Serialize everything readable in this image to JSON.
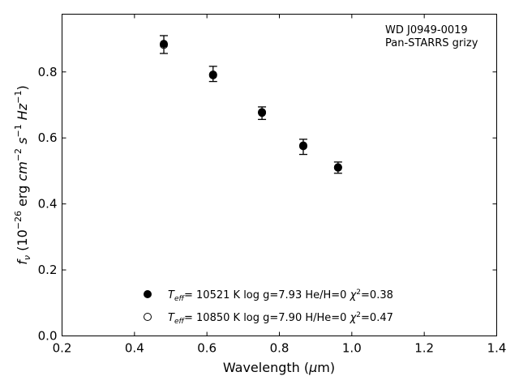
{
  "chart_data": {
    "type": "scatter",
    "xlabel": "Wavelength (μm)",
    "ylabel": "fν (10⁻²⁶ erg cm⁻² s⁻¹ Hz⁻¹)",
    "xlim": [
      0.2,
      1.4
    ],
    "ylim": [
      0.0,
      0.975
    ],
    "x_ticks": [
      0.2,
      0.4,
      0.6,
      0.8,
      1.0,
      1.2,
      1.4
    ],
    "x_tick_labels": [
      "0.2",
      "0.4",
      "0.6",
      "0.8",
      "1.0",
      "1.2",
      "1.4"
    ],
    "y_ticks": [
      0.0,
      0.2,
      0.4,
      0.6,
      0.8
    ],
    "y_tick_labels": [
      "0.0",
      "0.2",
      "0.4",
      "0.6",
      "0.8"
    ],
    "grid": false,
    "annotation_lines": [
      "WD J0949-0019",
      "Pan-STARRS grizy"
    ],
    "annotation_placement": "top-right",
    "legend_placement": "bottom-center",
    "observed": {
      "x": [
        0.481,
        0.617,
        0.752,
        0.866,
        0.962
      ],
      "y": [
        0.883,
        0.794,
        0.675,
        0.573,
        0.51
      ],
      "yerr": [
        0.027,
        0.023,
        0.019,
        0.023,
        0.017
      ]
    },
    "series": [
      {
        "marker": "filled-circle",
        "x": [
          0.481,
          0.617,
          0.752,
          0.866,
          0.962
        ],
        "y": [
          0.885,
          0.79,
          0.678,
          0.577,
          0.511
        ],
        "legend": {
          "teff_value": "= 10521 K",
          "params": "log g=7.93  He/H=0",
          "chi2_value": "=0.38"
        }
      },
      {
        "marker": "open-circle",
        "x": [
          0.481,
          0.617,
          0.752,
          0.866,
          0.962
        ],
        "y": [
          0.882,
          0.792,
          0.676,
          0.575,
          0.51
        ],
        "legend": {
          "teff_value": "= 10850 K",
          "params": "log g=7.90  H/He=0",
          "chi2_value": "=0.47"
        }
      }
    ]
  }
}
